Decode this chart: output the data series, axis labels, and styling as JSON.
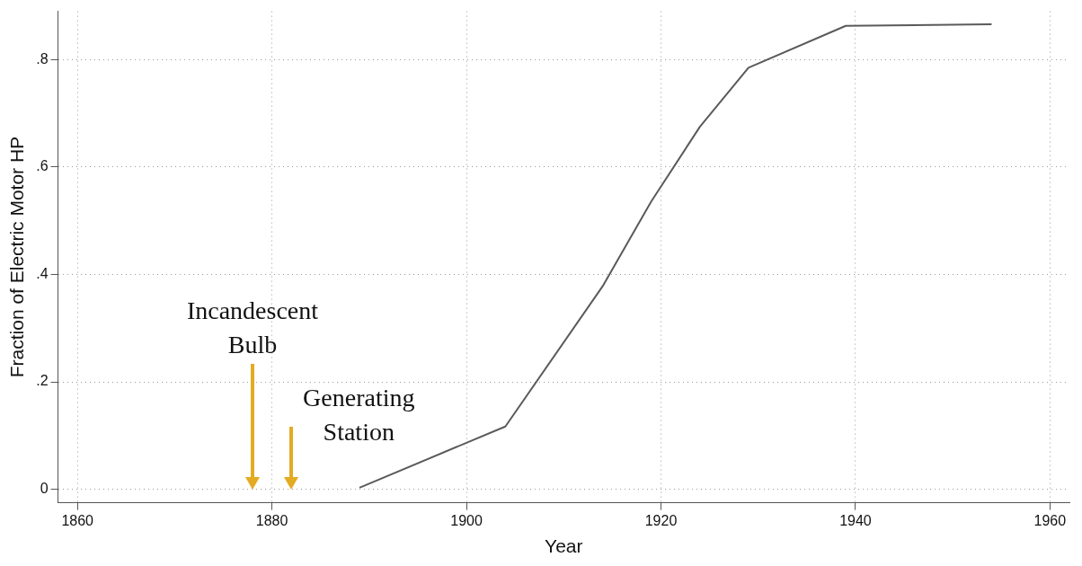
{
  "chart_data": {
    "type": "line",
    "xlabel": "Year",
    "ylabel": "Fraction of Electric Motor HP",
    "x": [
      1889,
      1904,
      1914,
      1919,
      1924,
      1929,
      1939,
      1954
    ],
    "series": [
      {
        "color": "#5a5a5a",
        "values": [
          0.003,
          0.117,
          0.378,
          0.536,
          0.675,
          0.785,
          0.863,
          0.866
        ]
      }
    ],
    "xlim": [
      1858,
      1962
    ],
    "xticks": [
      1860,
      1880,
      1900,
      1920,
      1940,
      1960
    ],
    "ylim": [
      -0.025,
      0.89
    ],
    "yticks": [
      0,
      {
        "value": 0.2,
        "label": ".2"
      },
      {
        "value": 0.4,
        "label": ".4"
      },
      {
        "value": 0.6,
        "label": ".6"
      },
      {
        "value": 0.8,
        "label": ".8"
      }
    ],
    "grid": true,
    "legend": false,
    "marker": "none",
    "line_style": "solid",
    "ref_lines": [
      {
        "axis": "x",
        "value": 1878,
        "label": "Incandescent\nBulb",
        "color": "#e3ab22"
      },
      {
        "axis": "x",
        "value": 1882,
        "label": "Generating\nStation",
        "color": "#e3ab22"
      }
    ]
  }
}
